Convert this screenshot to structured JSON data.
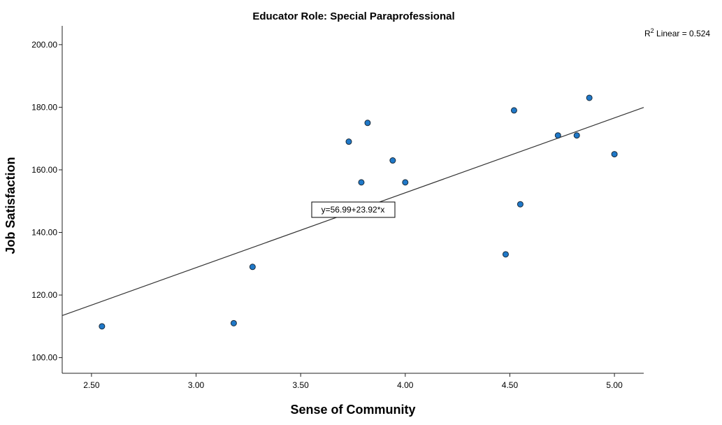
{
  "chart_data": {
    "type": "scatter",
    "title": "Educator Role: Special Paraprofessional",
    "xlabel": "Sense of Community",
    "ylabel": "Job Satisfaction",
    "xlim": [
      2.36,
      5.14
    ],
    "ylim": [
      95.0,
      206.0
    ],
    "x_ticks": [
      "2.50",
      "3.00",
      "3.50",
      "4.00",
      "4.50",
      "5.00"
    ],
    "y_ticks": [
      "100.00",
      "120.00",
      "140.00",
      "160.00",
      "180.00",
      "200.00"
    ],
    "grid": false,
    "points": [
      {
        "x": 2.55,
        "y": 110
      },
      {
        "x": 3.18,
        "y": 111
      },
      {
        "x": 3.27,
        "y": 129
      },
      {
        "x": 3.73,
        "y": 169
      },
      {
        "x": 3.79,
        "y": 156
      },
      {
        "x": 3.82,
        "y": 175
      },
      {
        "x": 3.94,
        "y": 163
      },
      {
        "x": 4.0,
        "y": 156
      },
      {
        "x": 4.48,
        "y": 133
      },
      {
        "x": 4.52,
        "y": 179
      },
      {
        "x": 4.55,
        "y": 149
      },
      {
        "x": 4.73,
        "y": 171
      },
      {
        "x": 4.82,
        "y": 171
      },
      {
        "x": 4.88,
        "y": 183
      },
      {
        "x": 5.0,
        "y": 165
      }
    ],
    "fit_line": {
      "intercept": 56.99,
      "slope": 23.92
    },
    "equation_label": "y=56.99+23.92*x",
    "r2_label": {
      "prefix": "R",
      "sup": "2",
      "suffix": " Linear = 0.524"
    },
    "marker_fill": "#1f78c8",
    "marker_stroke": "#1b2b3a"
  }
}
